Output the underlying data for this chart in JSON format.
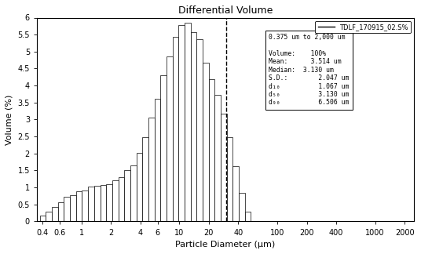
{
  "title": "Differential Volume",
  "xlabel": "Particle Diameter (μm)",
  "ylabel": "Volume (%)",
  "legend_label": "TDLF_170915_02.S%",
  "dashed_line_x": 30,
  "ylim": [
    0,
    6
  ],
  "yticks": [
    0,
    0.5,
    1,
    1.5,
    2,
    2.5,
    3,
    3.5,
    4,
    4.5,
    5,
    5.5,
    6
  ],
  "xtick_labels": [
    "0.4",
    "0.6",
    "1",
    "2",
    "4",
    "6",
    "10",
    "20",
    "40",
    "100",
    "200",
    "400",
    "1000",
    "2000"
  ],
  "xtick_values": [
    0.4,
    0.6,
    1,
    2,
    4,
    6,
    10,
    20,
    40,
    100,
    200,
    400,
    1000,
    2000
  ],
  "info_box": {
    "range": "0.375 um to 2,000 um",
    "volume": "100%",
    "mean": "3.514 um",
    "median": "3.130 um",
    "sd": "2.047 um",
    "d10": "1.067 um",
    "d50": "3.130 um",
    "d90": "6.506 um"
  },
  "bar_lefts": [
    0.375,
    0.432,
    0.498,
    0.574,
    0.661,
    0.762,
    0.878,
    1.012,
    1.166,
    1.344,
    1.549,
    1.785,
    2.057,
    2.371,
    2.732,
    3.149,
    3.628,
    4.18,
    4.815,
    5.548,
    6.393,
    7.367,
    8.489,
    9.78,
    11.27,
    12.985,
    14.96,
    17.237,
    19.862,
    22.888,
    26.38,
    30.39,
    35.01,
    40.35,
    46.5,
    53.58
  ],
  "bar_rights": [
    0.432,
    0.498,
    0.574,
    0.661,
    0.762,
    0.878,
    1.012,
    1.166,
    1.344,
    1.549,
    1.785,
    2.057,
    2.371,
    2.732,
    3.149,
    3.628,
    4.18,
    4.815,
    5.548,
    6.393,
    7.367,
    8.489,
    9.78,
    11.27,
    12.985,
    14.96,
    17.237,
    19.862,
    22.888,
    26.38,
    30.39,
    35.01,
    40.35,
    46.5,
    53.58,
    61.73
  ],
  "bar_heights": [
    0.18,
    0.28,
    0.42,
    0.57,
    0.72,
    0.77,
    0.88,
    0.92,
    1.02,
    1.05,
    1.07,
    1.1,
    1.21,
    1.3,
    1.5,
    1.65,
    2.03,
    2.48,
    3.05,
    3.62,
    4.3,
    4.85,
    5.44,
    5.78,
    5.85,
    5.57,
    5.37,
    4.68,
    4.18,
    3.72,
    3.18,
    2.48,
    1.62,
    0.84,
    0.28,
    0.0
  ]
}
